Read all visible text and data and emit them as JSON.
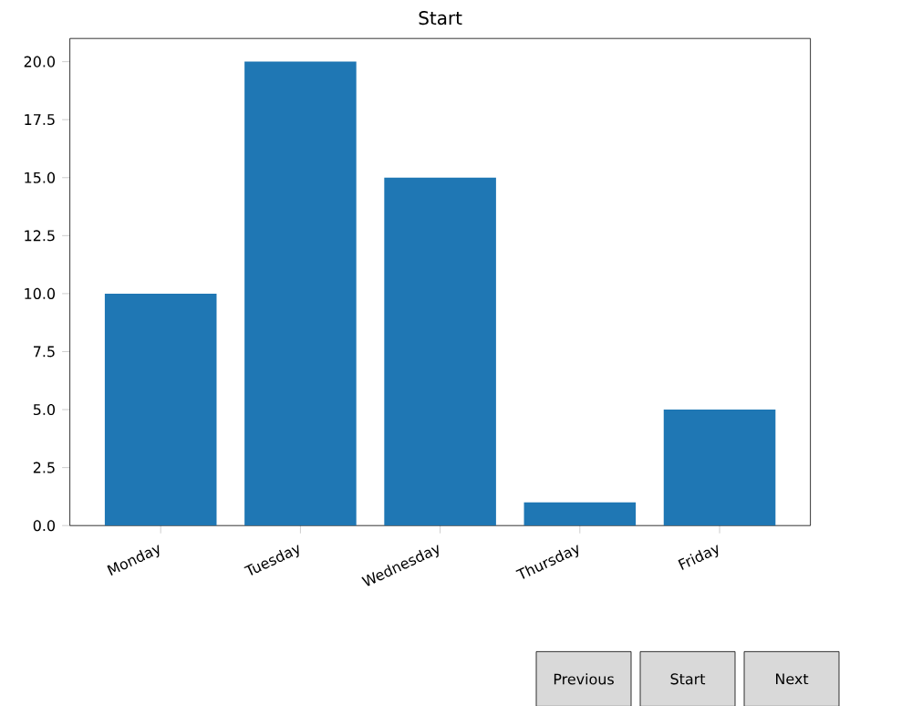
{
  "chart_data": {
    "type": "bar",
    "title": "Start",
    "categories": [
      "Monday",
      "Tuesday",
      "Wednesday",
      "Thursday",
      "Friday"
    ],
    "values": [
      10,
      20,
      15,
      1,
      5
    ],
    "color": "#1f77b4",
    "ylim": [
      0,
      21
    ],
    "yticks": [
      {
        "value": 0,
        "label": "0.0"
      },
      {
        "value": 2.5,
        "label": "2.5"
      },
      {
        "value": 5,
        "label": "5.0"
      },
      {
        "value": 7.5,
        "label": "7.5"
      },
      {
        "value": 10,
        "label": "10.0"
      },
      {
        "value": 12.5,
        "label": "12.5"
      },
      {
        "value": 15,
        "label": "15.0"
      },
      {
        "value": 17.5,
        "label": "17.5"
      },
      {
        "value": 20,
        "label": "20.0"
      }
    ],
    "annotations": [
      "Previous",
      "Start",
      "Next"
    ]
  }
}
